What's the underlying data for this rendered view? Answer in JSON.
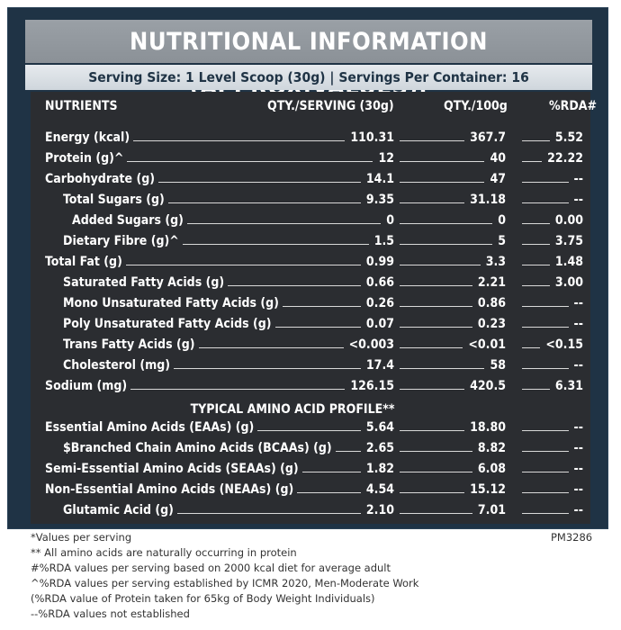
{
  "title": "NUTRITIONAL INFORMATION (APPROX.VALUES):",
  "serving_line": "Serving Size: 1 Level Scoop (30g)  |  Servings Per Container: 16",
  "headers": {
    "nutrients": "NUTRIENTS",
    "per_serving": "QTY./SERVING (30g)",
    "per_100g": "QTY./100g",
    "rda": "%RDA#"
  },
  "rows": [
    {
      "label": "Energy (kcal)",
      "serving": "110.31",
      "per100": "367.7",
      "rda": "5.52"
    },
    {
      "label": "Protein (g)^",
      "serving": "12",
      "per100": "40",
      "rda": "22.22"
    },
    {
      "label": "Carbohydrate (g)",
      "serving": "14.1",
      "per100": "47",
      "rda": "--"
    },
    {
      "label": "Total Sugars (g)",
      "serving": "9.35",
      "per100": "31.18",
      "rda": "--"
    },
    {
      "label": "Added Sugars (g)",
      "serving": "0",
      "per100": "0",
      "rda": "0.00"
    },
    {
      "label": "Dietary Fibre (g)^",
      "serving": "1.5",
      "per100": "5",
      "rda": "3.75"
    },
    {
      "label": "Total Fat (g)",
      "serving": "0.99",
      "per100": "3.3",
      "rda": "1.48"
    },
    {
      "label": "Saturated Fatty Acids (g)",
      "serving": "0.66",
      "per100": "2.21",
      "rda": "3.00"
    },
    {
      "label": "Mono Unsaturated Fatty Acids (g)",
      "serving": "0.26",
      "per100": "0.86",
      "rda": "--"
    },
    {
      "label": "Poly Unsaturated Fatty Acids (g)",
      "serving": "0.07",
      "per100": "0.23",
      "rda": "--"
    },
    {
      "label": "Trans Fatty Acids (g)",
      "serving": "<0.003",
      "per100": "<0.01",
      "rda": "<0.15"
    },
    {
      "label": "Cholesterol  (mg)",
      "serving": "17.4",
      "per100": "58",
      "rda": "--"
    },
    {
      "label": "Sodium (mg)",
      "serving": "126.15",
      "per100": "420.5",
      "rda": "6.31"
    }
  ],
  "amino_heading": "TYPICAL AMINO ACID PROFILE**",
  "amino_rows": [
    {
      "label": "Essential Amino Acids (EAAs) (g)",
      "serving": "5.64",
      "per100": "18.80",
      "rda": "--"
    },
    {
      "label": "$Branched Chain Amino Acids (BCAAs) (g)",
      "serving": "2.65",
      "per100": "8.82",
      "rda": "--"
    },
    {
      "label": "Semi-Essential Amino Acids (SEAAs) (g)",
      "serving": "1.82",
      "per100": "6.08",
      "rda": "--"
    },
    {
      "label": "Non-Essential Amino Acids (NEAAs) (g)",
      "serving": "4.54",
      "per100": "15.12",
      "rda": "--"
    },
    {
      "label": "Glutamic Acid (g)",
      "serving": "2.10",
      "per100": "7.01",
      "rda": "--"
    }
  ],
  "footnotes": [
    "*Values per serving",
    "** All amino acids are naturally occurring in protein",
    "#%RDA values per serving based on 2000 kcal diet for average adult",
    "^%RDA values per serving established by ICMR 2020, Men-Moderate Work",
    "(%RDA value of Protein taken for 65kg of Body Weight Individuals)",
    "--%RDA values not established"
  ],
  "code": "PM3286"
}
